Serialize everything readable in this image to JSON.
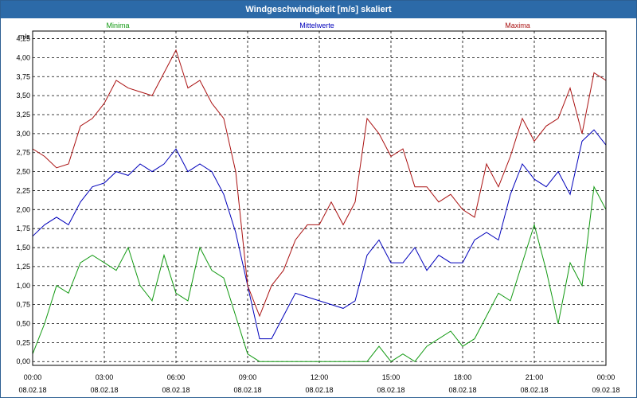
{
  "window": {
    "title": "Windgeschwindigkeit [m/s] skaliert"
  },
  "chart_data": {
    "type": "line",
    "title": "Windgeschwindigkeit [m/s] skaliert",
    "ylabel": "m/s",
    "ylim": [
      -0.05,
      4.35
    ],
    "xlim_hours": [
      0,
      24
    ],
    "grid": true,
    "legend_placement": "top",
    "y_ticks": [
      "0,00",
      "0,25",
      "0,50",
      "0,75",
      "1,00",
      "1,25",
      "1,50",
      "1,75",
      "2,00",
      "2,25",
      "2,50",
      "2,75",
      "3,00",
      "3,25",
      "3,50",
      "3,75",
      "4,00",
      "4,25"
    ],
    "x_ticks": [
      {
        "time": "00:00",
        "date": "08.02.18"
      },
      {
        "time": "03:00",
        "date": "08.02.18"
      },
      {
        "time": "06:00",
        "date": "08.02.18"
      },
      {
        "time": "09:00",
        "date": "08.02.18"
      },
      {
        "time": "12:00",
        "date": "08.02.18"
      },
      {
        "time": "15:00",
        "date": "08.02.18"
      },
      {
        "time": "18:00",
        "date": "08.02.18"
      },
      {
        "time": "21:00",
        "date": "08.02.18"
      },
      {
        "time": "00:00",
        "date": "09.02.18"
      }
    ],
    "x_hours": [
      0,
      0.5,
      1,
      1.5,
      2,
      2.5,
      3,
      3.5,
      4,
      4.5,
      5,
      5.5,
      6,
      6.5,
      7,
      7.5,
      8,
      8.5,
      9,
      9.5,
      10,
      10.5,
      11,
      11.5,
      12,
      12.5,
      13,
      13.5,
      14,
      14.5,
      15,
      15.5,
      16,
      16.5,
      17,
      17.5,
      18,
      18.5,
      19,
      19.5,
      20,
      20.5,
      21,
      21.5,
      22,
      22.5,
      23,
      23.5,
      24
    ],
    "series": [
      {
        "name": "Minima",
        "color": "#119911",
        "values": [
          0.1,
          0.5,
          1.0,
          0.9,
          1.3,
          1.4,
          1.3,
          1.2,
          1.5,
          1.0,
          0.8,
          1.4,
          0.9,
          0.8,
          1.5,
          1.2,
          1.1,
          0.6,
          0.1,
          0.0,
          0.0,
          0.0,
          0.0,
          0.0,
          0.0,
          0.0,
          0.0,
          0.0,
          0.0,
          0.2,
          0.0,
          0.1,
          0.0,
          0.2,
          0.3,
          0.4,
          0.2,
          0.3,
          0.6,
          0.9,
          0.8,
          1.3,
          1.8,
          1.2,
          0.5,
          1.3,
          1.0,
          2.3,
          2.0
        ]
      },
      {
        "name": "Mittelwerte",
        "color": "#0000bb",
        "values": [
          1.65,
          1.8,
          1.9,
          1.8,
          2.1,
          2.3,
          2.35,
          2.5,
          2.45,
          2.6,
          2.5,
          2.6,
          2.8,
          2.5,
          2.6,
          2.5,
          2.2,
          1.7,
          1.0,
          0.3,
          0.3,
          0.6,
          0.9,
          0.85,
          0.8,
          0.75,
          0.7,
          0.8,
          1.4,
          1.6,
          1.3,
          1.3,
          1.5,
          1.2,
          1.4,
          1.3,
          1.3,
          1.6,
          1.7,
          1.6,
          2.2,
          2.6,
          2.4,
          2.3,
          2.5,
          2.2,
          2.9,
          3.05,
          2.85
        ]
      },
      {
        "name": "Maxima",
        "color": "#aa1111",
        "values": [
          2.8,
          2.7,
          2.55,
          2.6,
          3.1,
          3.2,
          3.4,
          3.7,
          3.6,
          3.55,
          3.5,
          3.8,
          4.1,
          3.6,
          3.7,
          3.4,
          3.2,
          2.5,
          1.0,
          0.6,
          1.0,
          1.2,
          1.6,
          1.8,
          1.8,
          2.1,
          1.8,
          2.1,
          3.2,
          3.0,
          2.7,
          2.8,
          2.3,
          2.3,
          2.1,
          2.2,
          2.0,
          1.9,
          2.6,
          2.3,
          2.7,
          3.2,
          2.9,
          3.1,
          3.2,
          3.6,
          3.0,
          3.8,
          3.7
        ]
      }
    ]
  }
}
